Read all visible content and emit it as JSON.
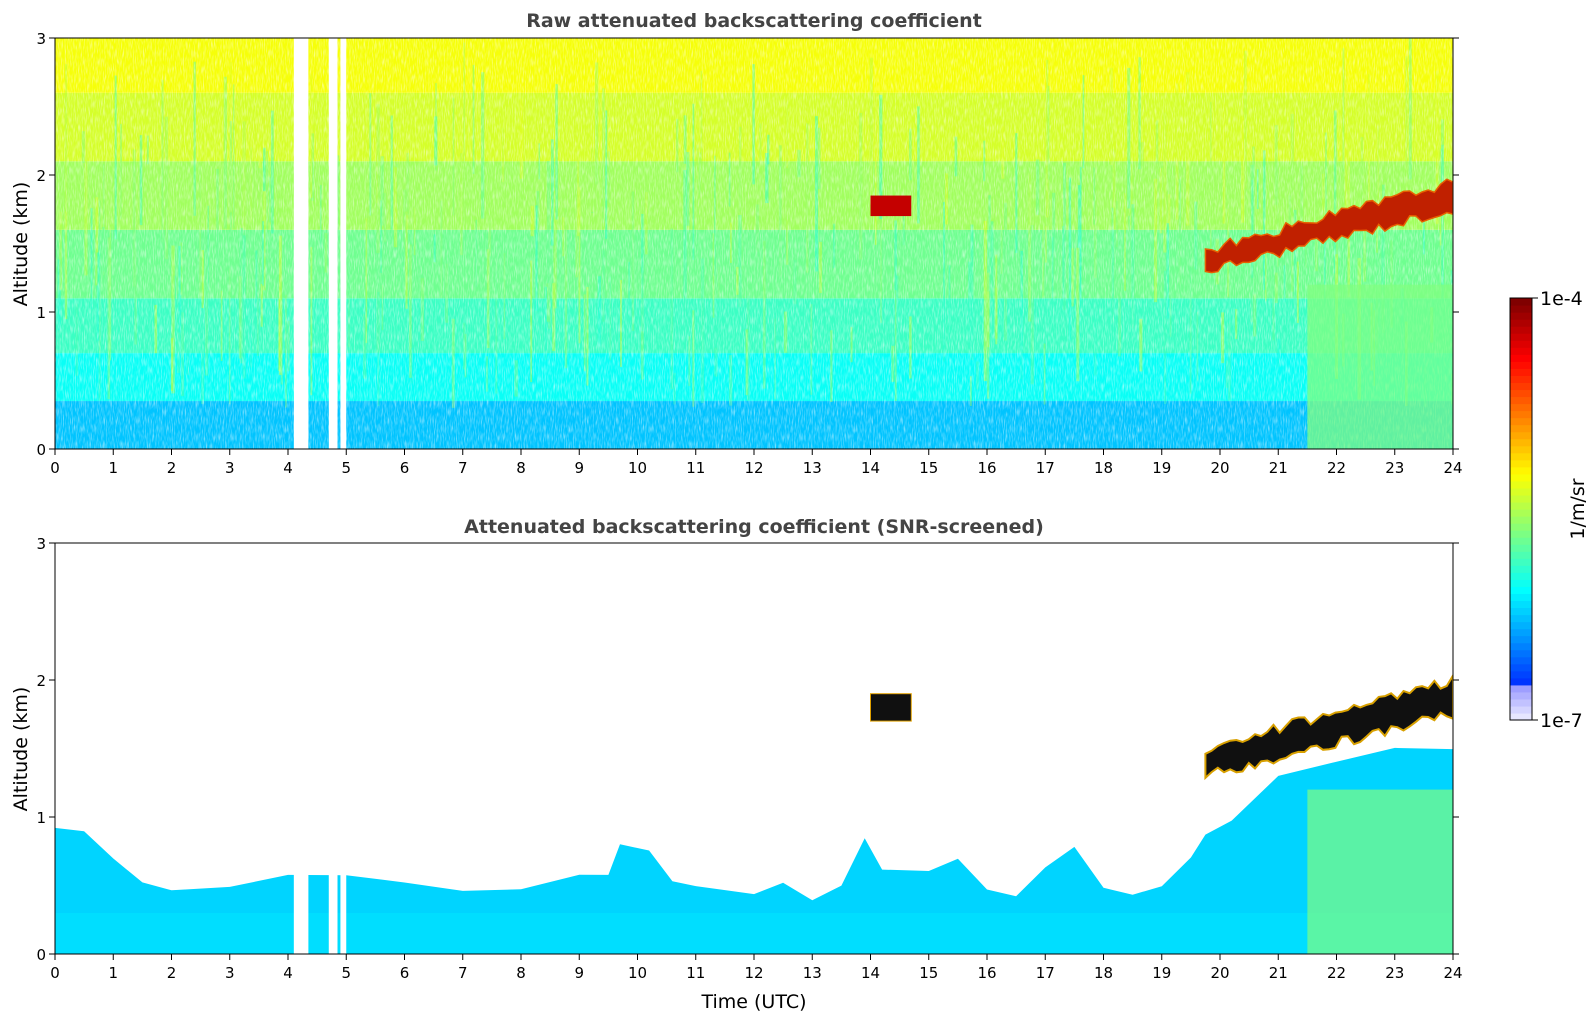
{
  "chart_data": [
    {
      "type": "heatmap",
      "title": "Raw attenuated backscattering coefficient",
      "xlabel": "",
      "ylabel": "Altitude (km)",
      "xlim": [
        0,
        24
      ],
      "ylim": [
        0,
        3
      ],
      "x_ticks": [
        "0",
        "1",
        "2",
        "3",
        "4",
        "5",
        "6",
        "7",
        "8",
        "9",
        "10",
        "11",
        "12",
        "13",
        "14",
        "15",
        "16",
        "17",
        "18",
        "19",
        "20",
        "21",
        "22",
        "23",
        "24"
      ],
      "y_ticks": [
        "0",
        "1",
        "2",
        "3"
      ],
      "colorscale": "jet, log10",
      "data_gaps_hours": [
        [
          4.1,
          4.35
        ],
        [
          4.7,
          4.85
        ],
        [
          4.9,
          5.0
        ]
      ],
      "features": [
        {
          "label": "surface boundary layer",
          "x": [
            0,
            24
          ],
          "y_top_km": [
            0.4,
            0.5
          ],
          "log10_value": -5.9
        },
        {
          "label": "cloud layer",
          "x": [
            14.0,
            14.7
          ],
          "y_km": [
            1.7,
            1.85
          ],
          "log10_value": -4.2
        },
        {
          "label": "cloud layer",
          "x": [
            19.75,
            24.0
          ],
          "y_km_start": [
            1.3,
            1.45
          ],
          "y_km_end": [
            1.75,
            1.95
          ],
          "log10_value": -4.1
        },
        {
          "label": "lower rain/haze",
          "x": [
            21.5,
            24.0
          ],
          "y_km": [
            0,
            1.2
          ],
          "log10_value": -5.5
        }
      ]
    },
    {
      "type": "heatmap",
      "title": "Attenuated backscattering coefficient (SNR-screened)",
      "xlabel": "Time (UTC)",
      "ylabel": "Altitude (km)",
      "xlim": [
        0,
        24
      ],
      "ylim": [
        0,
        3
      ],
      "x_ticks": [
        "0",
        "1",
        "2",
        "3",
        "4",
        "5",
        "6",
        "7",
        "8",
        "9",
        "10",
        "11",
        "12",
        "13",
        "14",
        "15",
        "16",
        "17",
        "18",
        "19",
        "20",
        "21",
        "22",
        "23",
        "24"
      ],
      "y_ticks": [
        "0",
        "1",
        "2",
        "3"
      ],
      "colorscale": "jet, log10",
      "signal_top_km": [
        [
          0,
          0.95
        ],
        [
          0.5,
          0.9
        ],
        [
          1,
          0.7
        ],
        [
          1.5,
          0.55
        ],
        [
          2,
          0.45
        ],
        [
          3,
          0.5
        ],
        [
          4,
          0.55
        ],
        [
          5,
          0.6
        ],
        [
          6,
          0.55
        ],
        [
          7,
          0.48
        ],
        [
          8,
          0.45
        ],
        [
          9,
          0.55
        ],
        [
          9.5,
          0.6
        ],
        [
          9.7,
          0.8
        ],
        [
          10.2,
          0.75
        ],
        [
          10.6,
          0.55
        ],
        [
          11,
          0.5
        ],
        [
          12,
          0.45
        ],
        [
          12.5,
          0.5
        ],
        [
          13,
          0.42
        ],
        [
          13.5,
          0.5
        ],
        [
          13.9,
          0.85
        ],
        [
          14.2,
          0.6
        ],
        [
          15,
          0.6
        ],
        [
          15.5,
          0.7
        ],
        [
          16,
          0.5
        ],
        [
          16.5,
          0.45
        ],
        [
          17,
          0.65
        ],
        [
          17.5,
          0.8
        ],
        [
          18,
          0.5
        ],
        [
          18.5,
          0.45
        ],
        [
          19,
          0.48
        ],
        [
          19.5,
          0.7
        ],
        [
          19.75,
          0.85
        ],
        [
          20.2,
          1.0
        ],
        [
          21,
          1.3
        ],
        [
          22,
          1.4
        ],
        [
          23,
          1.5
        ],
        [
          24,
          1.5
        ]
      ],
      "features": [
        {
          "label": "cloud layer",
          "x": [
            14.0,
            14.7
          ],
          "y_km": [
            1.7,
            1.9
          ],
          "log10_value": -4.0
        },
        {
          "label": "cloud layer",
          "x": [
            19.75,
            24.0
          ],
          "y_km_start": [
            1.3,
            1.5
          ],
          "y_km_end": [
            1.75,
            2.0
          ],
          "log10_value": -4.0
        }
      ]
    }
  ],
  "colorbar": {
    "label": "1/m/sr",
    "max_label": "1e-4",
    "min_label": "1e-7",
    "range": [
      1e-07,
      0.0001
    ]
  }
}
